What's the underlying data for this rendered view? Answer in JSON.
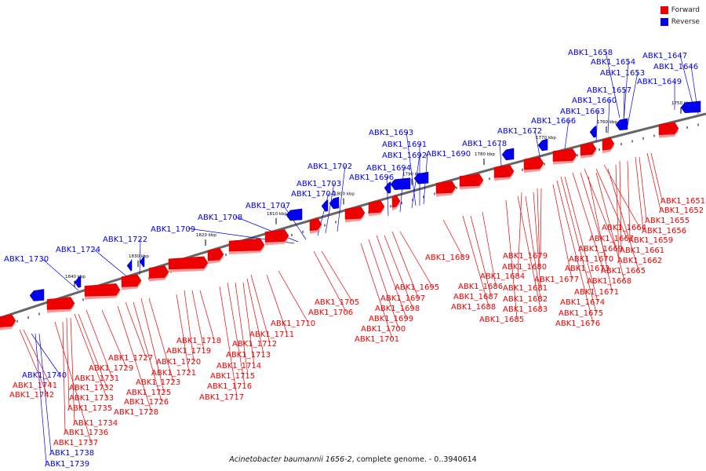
{
  "legend": {
    "forward_label": "Forward",
    "reverse_label": "Reverse",
    "forward_color": "#ee0000",
    "reverse_color": "#0000ee"
  },
  "caption": {
    "organism": "Acinetobacter baumannii 1656-2",
    "rest": ", complete genome. - 0..3940614"
  },
  "axis": {
    "ticks": [
      "1750 kbp",
      "1760 kbp",
      "1770 kbp",
      "1780 kbp",
      "1790 kbp",
      "1800 kbp",
      "1810 kbp",
      "1820 kbp",
      "1830 kbp",
      "1840 kbp"
    ]
  },
  "genes": {
    "reverse": [
      "ABK1_1646",
      "ABK1_1647",
      "ABK1_1649",
      "ABK1_1653",
      "ABK1_1654",
      "ABK1_1657",
      "ABK1_1658",
      "ABK1_1660",
      "ABK1_1663",
      "ABK1_1666",
      "ABK1_1672",
      "ABK1_1678",
      "ABK1_1690",
      "ABK1_1691",
      "ABK1_1692",
      "ABK1_1693",
      "ABK1_1694",
      "ABK1_1696",
      "ABK1_1702",
      "ABK1_1703",
      "ABK1_1704",
      "ABK1_1707",
      "ABK1_1708",
      "ABK1_1709",
      "ABK1_1722",
      "ABK1_1724",
      "ABK1_1730",
      "ABK1_1738",
      "ABK1_1739",
      "ABK1_1740"
    ],
    "forward": [
      "ABK1_1651",
      "ABK1_1652",
      "ABK1_1655",
      "ABK1_1656",
      "ABK1_1659",
      "ABK1_1661",
      "ABK1_1662",
      "ABK1_1664",
      "ABK1_1665",
      "ABK1_1667",
      "ABK1_1668",
      "ABK1_1669",
      "ABK1_1670",
      "ABK1_1671",
      "ABK1_1673",
      "ABK1_1674",
      "ABK1_1675",
      "ABK1_1676",
      "ABK1_1677",
      "ABK1_1679",
      "ABK1_1680",
      "ABK1_1681",
      "ABK1_1682",
      "ABK1_1683",
      "ABK1_1684",
      "ABK1_1685",
      "ABK1_1686",
      "ABK1_1687",
      "ABK1_1688",
      "ABK1_1689",
      "ABK1_1695",
      "ABK1_1697",
      "ABK1_1698",
      "ABK1_1699",
      "ABK1_1700",
      "ABK1_1701",
      "ABK1_1705",
      "ABK1_1706",
      "ABK1_1710",
      "ABK1_1711",
      "ABK1_1712",
      "ABK1_1713",
      "ABK1_1714",
      "ABK1_1715",
      "ABK1_1716",
      "ABK1_1717",
      "ABK1_1718",
      "ABK1_1719",
      "ABK1_1720",
      "ABK1_1721",
      "ABK1_1723",
      "ABK1_1725",
      "ABK1_1726",
      "ABK1_1727",
      "ABK1_1728",
      "ABK1_1729",
      "ABK1_1731",
      "ABK1_1732",
      "ABK1_1733",
      "ABK1_1734",
      "ABK1_1735",
      "ABK1_1736",
      "ABK1_1737",
      "ABK1_1741",
      "ABK1_1742"
    ]
  }
}
